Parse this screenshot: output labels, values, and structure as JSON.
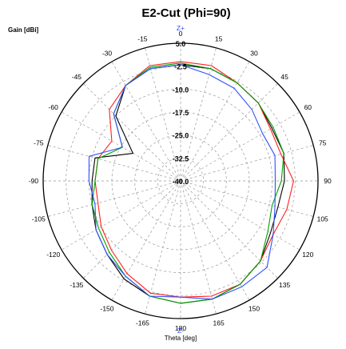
{
  "chart_data": {
    "type": "line",
    "polar": true,
    "title": "E2-Cut (Phi=90)",
    "ylabel": "Gain [dBi]",
    "xlabel": "Theta [deg]",
    "top_marker": "Z+",
    "bottom_marker": "Z-",
    "radial_range": [
      -40.0,
      5.0
    ],
    "radial_ticks": [
      "5.0",
      "-2.5",
      "-10.0",
      "-17.5",
      "-25.0",
      "-32.5",
      "-40.0"
    ],
    "radial_tick_values": [
      5.0,
      -2.5,
      -10.0,
      -17.5,
      -25.0,
      -32.5,
      -40.0
    ],
    "angular_ticks": [
      "0",
      "15",
      "30",
      "45",
      "60",
      "75",
      "90",
      "105",
      "120",
      "135",
      "150",
      "165",
      "180",
      "-165",
      "-150",
      "-135",
      "-120",
      "-105",
      "-90",
      "-75",
      "-60",
      "-45",
      "-30",
      "-15"
    ],
    "angular_tick_values": [
      0,
      15,
      30,
      45,
      60,
      75,
      90,
      105,
      120,
      135,
      150,
      165,
      180,
      -165,
      -150,
      -135,
      -120,
      -105,
      -90,
      -75,
      -60,
      -45,
      -30,
      -15
    ],
    "grid": true,
    "colors": {
      "grid": "#999999",
      "black": "#000000",
      "red": "#ff2020",
      "green": "#00a000",
      "blue": "#3050ff"
    },
    "series": [
      {
        "color": "black",
        "theta": [
          0,
          15,
          30,
          45,
          60,
          75,
          90,
          105,
          120,
          135,
          150,
          165,
          180,
          -165,
          -150,
          -135,
          -120,
          -105,
          -90,
          -75,
          -60,
          -45,
          -30,
          -15
        ],
        "values": [
          -2,
          -2,
          -3,
          -4,
          -5.5,
          -5,
          -6,
          -7,
          -6,
          -3,
          -1,
          0,
          0,
          -1,
          -3,
          -6,
          -8,
          -10,
          -11,
          -11,
          -22,
          -10,
          -4,
          -2
        ]
      },
      {
        "color": "red",
        "theta": [
          0,
          15,
          30,
          45,
          60,
          75,
          90,
          105,
          120,
          135,
          150,
          165,
          180,
          -165,
          -150,
          -135,
          -120,
          -105,
          -90,
          -75,
          -60,
          -45,
          -30,
          -15
        ],
        "values": [
          -1,
          -1,
          -3,
          -4,
          -6,
          -6,
          -3,
          -4,
          -5,
          -3,
          -1,
          -1,
          -2,
          -2,
          -5,
          -8,
          -10,
          -12,
          -12,
          -12,
          -14,
          -7,
          -4,
          -1
        ]
      },
      {
        "color": "green",
        "theta": [
          0,
          15,
          30,
          45,
          60,
          75,
          90,
          105,
          120,
          135,
          150,
          165,
          180,
          -165,
          -150,
          -135,
          -120,
          -105,
          -90,
          -75,
          -60,
          -45,
          -30,
          -15
        ],
        "values": [
          -1.5,
          -2,
          -3,
          -4,
          -5,
          -5,
          -7,
          -9,
          -7,
          -3,
          -1,
          0,
          0,
          -1,
          -4,
          -7,
          -9,
          -10,
          -12,
          -12,
          -18,
          -9,
          -4,
          -1.5
        ]
      },
      {
        "color": "blue",
        "theta": [
          0,
          15,
          30,
          45,
          60,
          75,
          90,
          105,
          120,
          135,
          150,
          165,
          180,
          -165,
          -150,
          -135,
          -120,
          -105,
          -90,
          -75,
          -60,
          -45,
          -30,
          -15
        ],
        "values": [
          -2,
          -4,
          -5,
          -7,
          -9,
          -8,
          -9,
          -8,
          -5,
          0,
          0,
          0,
          -2,
          -1,
          -4,
          -6,
          -8,
          -11,
          -10,
          -9,
          -18,
          -9,
          -4,
          -2
        ]
      }
    ]
  }
}
